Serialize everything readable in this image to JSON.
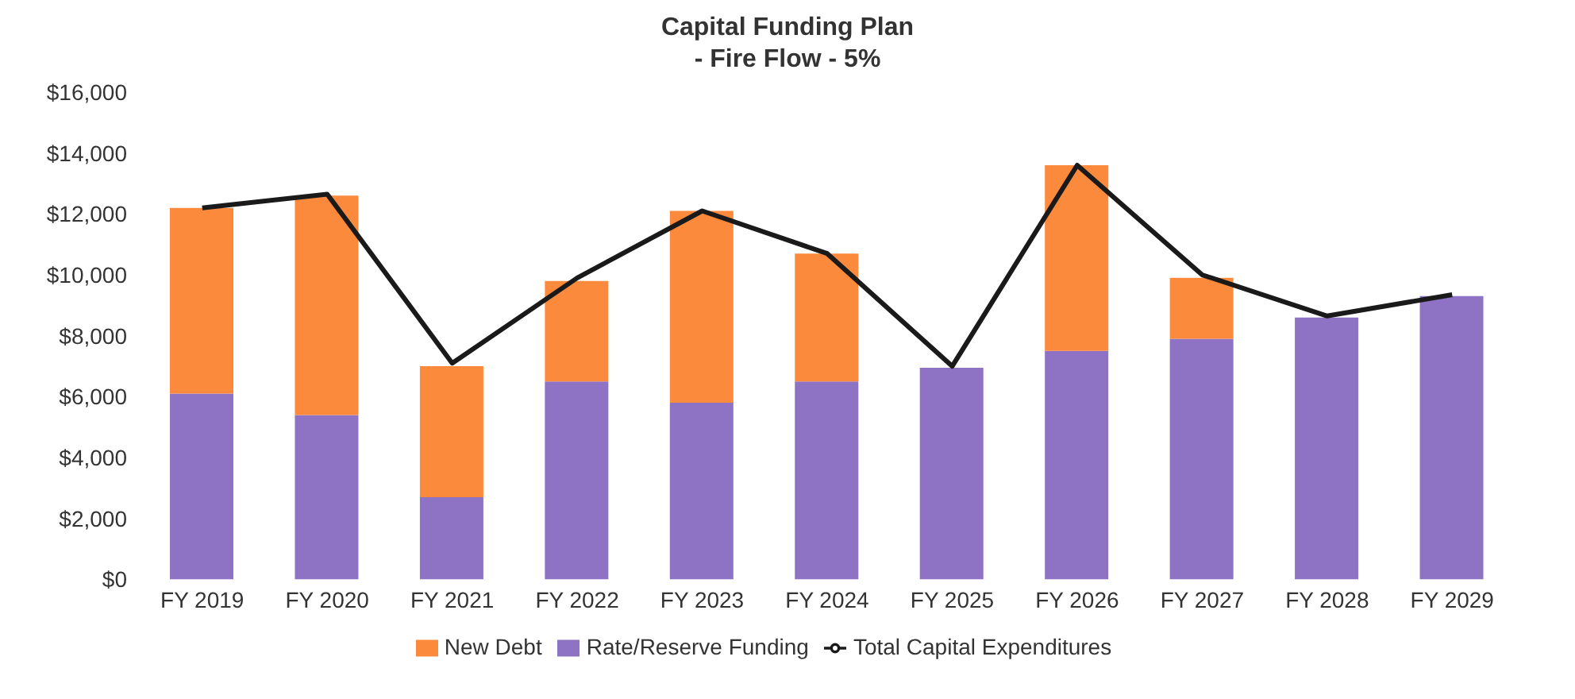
{
  "chart_data": {
    "type": "bar",
    "title": "Capital Funding Plan",
    "subtitle": "- Fire Flow - 5%",
    "categories": [
      "FY 2019",
      "FY 2020",
      "FY 2021",
      "FY 2022",
      "FY 2023",
      "FY 2024",
      "FY 2025",
      "FY 2026",
      "FY 2027",
      "FY 2028",
      "FY 2029"
    ],
    "stacked": true,
    "series": [
      {
        "name": "Rate/Reserve Funding",
        "color": "#8e72c4",
        "values": [
          6100,
          5400,
          2700,
          6500,
          5800,
          6500,
          6950,
          7500,
          7900,
          8600,
          9300
        ]
      },
      {
        "name": "New Debt",
        "color": "#fb8a3c",
        "values": [
          6100,
          7200,
          4300,
          3300,
          6300,
          4200,
          0,
          6100,
          2000,
          0,
          0
        ]
      },
      {
        "name": "Total Capital Expenditures",
        "type": "line",
        "color": "#1a1a1a",
        "values": [
          12200,
          12650,
          7100,
          9900,
          12100,
          10700,
          7000,
          13600,
          10000,
          8650,
          9350
        ]
      }
    ],
    "ylim": [
      0,
      16000
    ],
    "yticks": [
      {
        "value": 0,
        "label": "$0"
      },
      {
        "value": 2000,
        "label": "$2,000"
      },
      {
        "value": 4000,
        "label": "$4,000"
      },
      {
        "value": 6000,
        "label": "$6,000"
      },
      {
        "value": 8000,
        "label": "$8,000"
      },
      {
        "value": 10000,
        "label": "$10,000"
      },
      {
        "value": 12000,
        "label": "$12,000"
      },
      {
        "value": 14000,
        "label": "$14,000"
      },
      {
        "value": 16000,
        "label": "$16,000"
      }
    ],
    "grid": false,
    "legend": "bottom",
    "marker": "none"
  }
}
